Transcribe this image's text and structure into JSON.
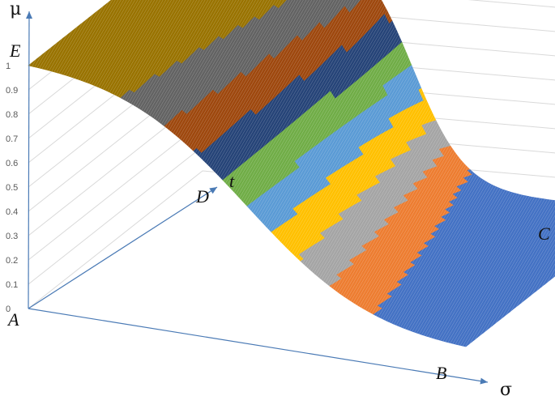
{
  "chart_data": {
    "type": "surface-3d",
    "axes": {
      "vertical_label": "μ",
      "horizontal_label": "σ",
      "depth_label": "t"
    },
    "corner_labels": {
      "A": "A",
      "B": "B",
      "C": "C",
      "D": "D",
      "E": "E"
    },
    "z_ticks": [
      "0",
      "0.1",
      "0.2",
      "0.3",
      "0.4",
      "0.5",
      "0.6",
      "0.7",
      "0.8",
      "0.9",
      "1"
    ],
    "zlim": [
      0,
      1
    ],
    "grid": true,
    "band_colors": [
      "#4472C4",
      "#ED7D31",
      "#A5A5A5",
      "#FFC000",
      "#5B9BD5",
      "#70AD47",
      "#264478",
      "#9E480E",
      "#636363",
      "#997300"
    ],
    "surface": {
      "description_values": "mu starts at 1 along edge A-E (sigma = 0) and decreases sigmoidally in sigma to 0 along edge B-C; the transition is sharper for later t",
      "sigma_range": [
        0,
        1
      ],
      "t_range": [
        0,
        1
      ],
      "mu_at_sigma0": 1,
      "mu_at_sigma1": 0
    }
  }
}
